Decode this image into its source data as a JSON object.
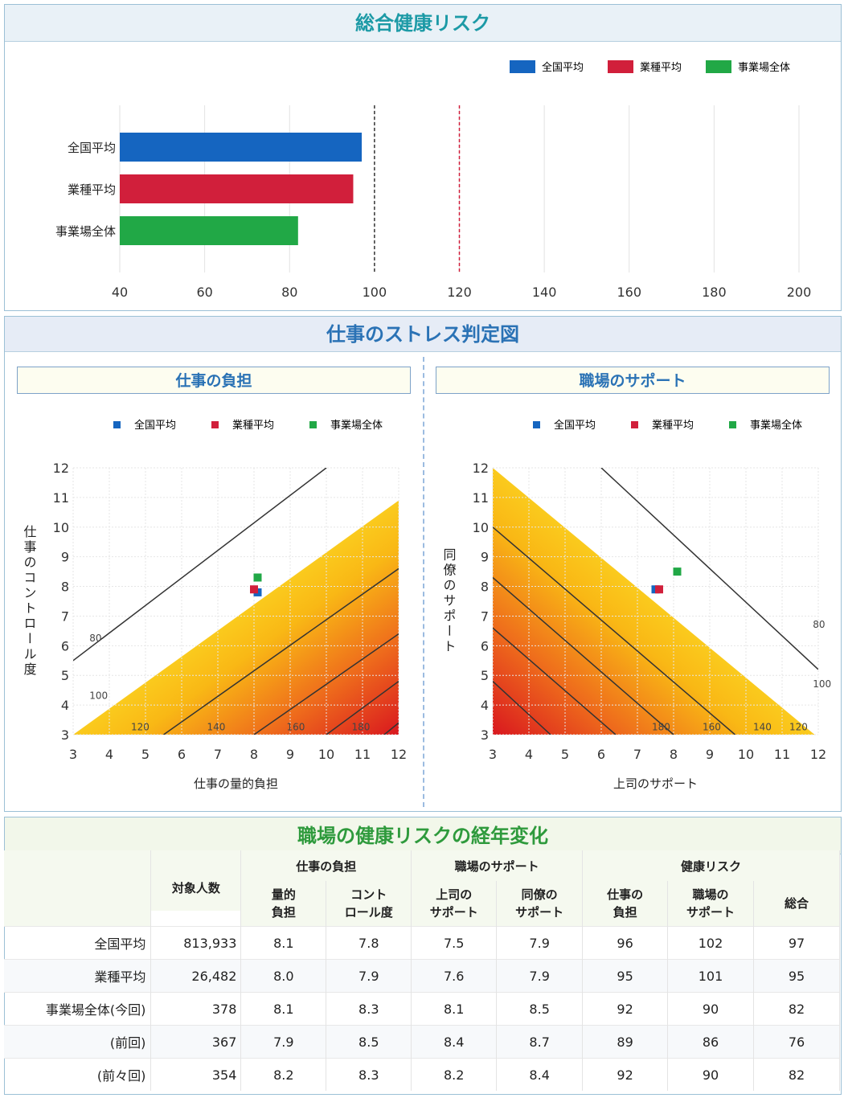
{
  "colors": {
    "national": "#1565c0",
    "industry": "#d11f3b",
    "site": "#21a846"
  },
  "section1": {
    "title": "総合健康リスク",
    "chart_data": {
      "type": "bar",
      "orientation": "horizontal",
      "categories": [
        "全国平均",
        "業種平均",
        "事業場全体"
      ],
      "values": [
        97,
        95,
        82
      ],
      "legend": [
        "全国平均",
        "業種平均",
        "事業場全体"
      ],
      "legend_position": "top-right",
      "xlim": [
        40,
        200
      ],
      "xticks": [
        "40",
        "60",
        "80",
        "100",
        "120",
        "140",
        "160",
        "180",
        "200"
      ],
      "reference_lines": [
        {
          "x": 100,
          "style": "dashed",
          "color": "#333333"
        },
        {
          "x": 120,
          "style": "dashed",
          "color": "#d11f3b"
        }
      ],
      "grid": true
    }
  },
  "section2": {
    "title": "仕事のストレス判定図",
    "left": {
      "subtitle": "仕事の負担",
      "legend": [
        "全国平均",
        "業種平均",
        "事業場全体"
      ],
      "chart_data": {
        "type": "scatter",
        "xlabel": "仕事の量的負担",
        "ylabel": "仕事のコントロール度",
        "xlim": [
          3,
          12
        ],
        "ylim": [
          3,
          12
        ],
        "xticks": [
          "3",
          "4",
          "5",
          "6",
          "7",
          "8",
          "9",
          "10",
          "11",
          "12"
        ],
        "yticks": [
          "3",
          "4",
          "5",
          "6",
          "7",
          "8",
          "9",
          "10",
          "11",
          "12"
        ],
        "points": [
          {
            "name": "全国平均",
            "x": 8.1,
            "y": 7.8
          },
          {
            "name": "業種平均",
            "x": 8.0,
            "y": 7.9
          },
          {
            "name": "事業場全体",
            "x": 8.1,
            "y": 8.3
          }
        ],
        "contour_labels": [
          "80",
          "100",
          "120",
          "140",
          "160",
          "180"
        ]
      }
    },
    "right": {
      "subtitle": "職場のサポート",
      "legend": [
        "全国平均",
        "業種平均",
        "事業場全体"
      ],
      "chart_data": {
        "type": "scatter",
        "xlabel": "上司のサポート",
        "ylabel": "同僚のサポート",
        "xlim": [
          3,
          12
        ],
        "ylim": [
          3,
          12
        ],
        "xticks": [
          "3",
          "4",
          "5",
          "6",
          "7",
          "8",
          "9",
          "10",
          "11",
          "12"
        ],
        "yticks": [
          "3",
          "4",
          "5",
          "6",
          "7",
          "8",
          "9",
          "10",
          "11",
          "12"
        ],
        "points": [
          {
            "name": "全国平均",
            "x": 7.5,
            "y": 7.9
          },
          {
            "name": "業種平均",
            "x": 7.6,
            "y": 7.9
          },
          {
            "name": "事業場全体",
            "x": 8.1,
            "y": 8.5
          }
        ],
        "contour_labels": [
          "180",
          "160",
          "140",
          "120",
          "100",
          "80"
        ]
      }
    }
  },
  "section3": {
    "title": "職場の健康リスクの経年変化",
    "groups": {
      "burden": "仕事の負担",
      "support": "職場のサポート",
      "risk": "健康リスク"
    },
    "columns": {
      "count": "対象人数",
      "quant1": "量的",
      "quant2": "負担",
      "ctrl1": "コント",
      "ctrl2": "ロール度",
      "boss1": "上司の",
      "boss2": "サポート",
      "peer1": "同僚の",
      "peer2": "サポート",
      "rb1": "仕事の",
      "rb2": "負担",
      "rs1": "職場の",
      "rs2": "サポート",
      "total": "総合"
    },
    "rows": [
      {
        "label": "全国平均",
        "count": "813,933",
        "quant": "8.1",
        "ctrl": "7.8",
        "boss": "7.5",
        "peer": "7.9",
        "rb": "96",
        "rs": "102",
        "total": "97"
      },
      {
        "label": "業種平均",
        "count": "26,482",
        "quant": "8.0",
        "ctrl": "7.9",
        "boss": "7.6",
        "peer": "7.9",
        "rb": "95",
        "rs": "101",
        "total": "95"
      },
      {
        "label": "事業場全体(今回)",
        "count": "378",
        "quant": "8.1",
        "ctrl": "8.3",
        "boss": "8.1",
        "peer": "8.5",
        "rb": "92",
        "rs": "90",
        "total": "82"
      },
      {
        "label": "(前回)",
        "count": "367",
        "quant": "7.9",
        "ctrl": "8.5",
        "boss": "8.4",
        "peer": "8.7",
        "rb": "89",
        "rs": "86",
        "total": "76"
      },
      {
        "label": "(前々回)",
        "count": "354",
        "quant": "8.2",
        "ctrl": "8.3",
        "boss": "8.2",
        "peer": "8.4",
        "rb": "92",
        "rs": "90",
        "total": "82"
      }
    ]
  }
}
